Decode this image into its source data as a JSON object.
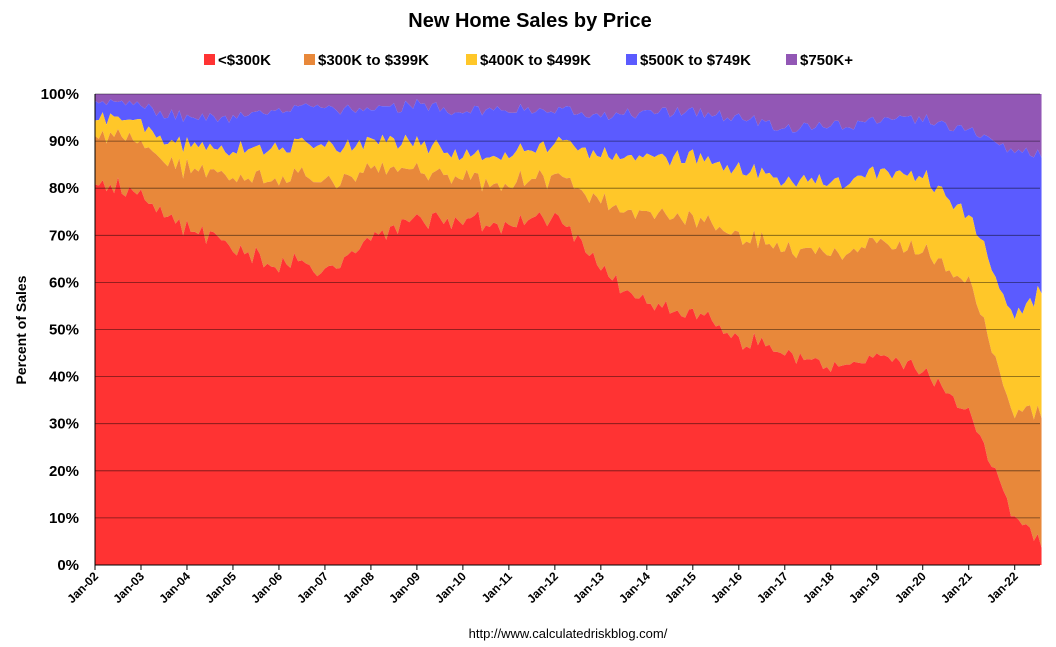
{
  "chart_data": {
    "type": "area",
    "stacked": true,
    "percent": true,
    "title": "New Home Sales by Price",
    "xlabel": "",
    "ylabel": "Percent of Sales",
    "ylim": [
      0,
      100
    ],
    "y_ticks": [
      "0%",
      "10%",
      "20%",
      "30%",
      "40%",
      "50%",
      "60%",
      "70%",
      "80%",
      "90%",
      "100%"
    ],
    "x_ticks": [
      "Jan-02",
      "Jan-03",
      "Jan-04",
      "Jan-05",
      "Jan-06",
      "Jan-07",
      "Jan-08",
      "Jan-09",
      "Jan-10",
      "Jan-11",
      "Jan-12",
      "Jan-13",
      "Jan-14",
      "Jan-15",
      "Jan-16",
      "Jan-17",
      "Jan-18",
      "Jan-19",
      "Jan-20",
      "Jan-21",
      "Jan-22"
    ],
    "x_start": "Jan-02",
    "x_end": "Jul-22",
    "grid": true,
    "legend_position": "top",
    "source": "http://www.calculatedriskblog.com/",
    "key_years": [
      2002,
      2003,
      2004,
      2005,
      2006,
      2007,
      2008,
      2009,
      2010,
      2011,
      2012,
      2013,
      2014,
      2015,
      2016,
      2017,
      2018,
      2019,
      2020,
      2021,
      2022,
      2022.55
    ],
    "series": [
      {
        "name": "<$300K",
        "color": "#ff3333",
        "values": [
          82,
          78,
          72,
          67,
          64,
          63,
          68,
          74,
          73,
          72,
          75,
          63,
          55,
          53,
          48,
          45,
          42,
          44,
          42,
          32,
          10,
          5
        ]
      },
      {
        "name": "$300K to $399K",
        "color": "#e8883a",
        "values": [
          11,
          11,
          12,
          15,
          18,
          19,
          15,
          10,
          9,
          9,
          8,
          14,
          19,
          20,
          22,
          22,
          24,
          24,
          25,
          28,
          22,
          28
        ]
      },
      {
        "name": "$400K to $499K",
        "color": "#ffc729",
        "values": [
          3,
          4,
          5,
          6,
          7,
          7,
          6,
          6,
          5,
          6,
          7,
          10,
          12,
          13,
          14,
          15,
          15,
          15,
          16,
          14,
          20,
          25
        ]
      },
      {
        "name": "$500K to $749K",
        "color": "#5b5bff",
        "values": [
          3,
          4,
          6,
          7,
          8,
          8,
          7,
          8,
          9,
          10,
          7,
          8,
          10,
          10,
          11,
          11,
          12,
          11,
          12,
          18,
          36,
          29
        ]
      },
      {
        "name": "$750K+",
        "color": "#9257b5",
        "values": [
          1,
          3,
          5,
          5,
          3,
          3,
          4,
          2,
          4,
          3,
          3,
          5,
          4,
          4,
          5,
          7,
          7,
          6,
          5,
          8,
          12,
          13
        ]
      }
    ]
  }
}
